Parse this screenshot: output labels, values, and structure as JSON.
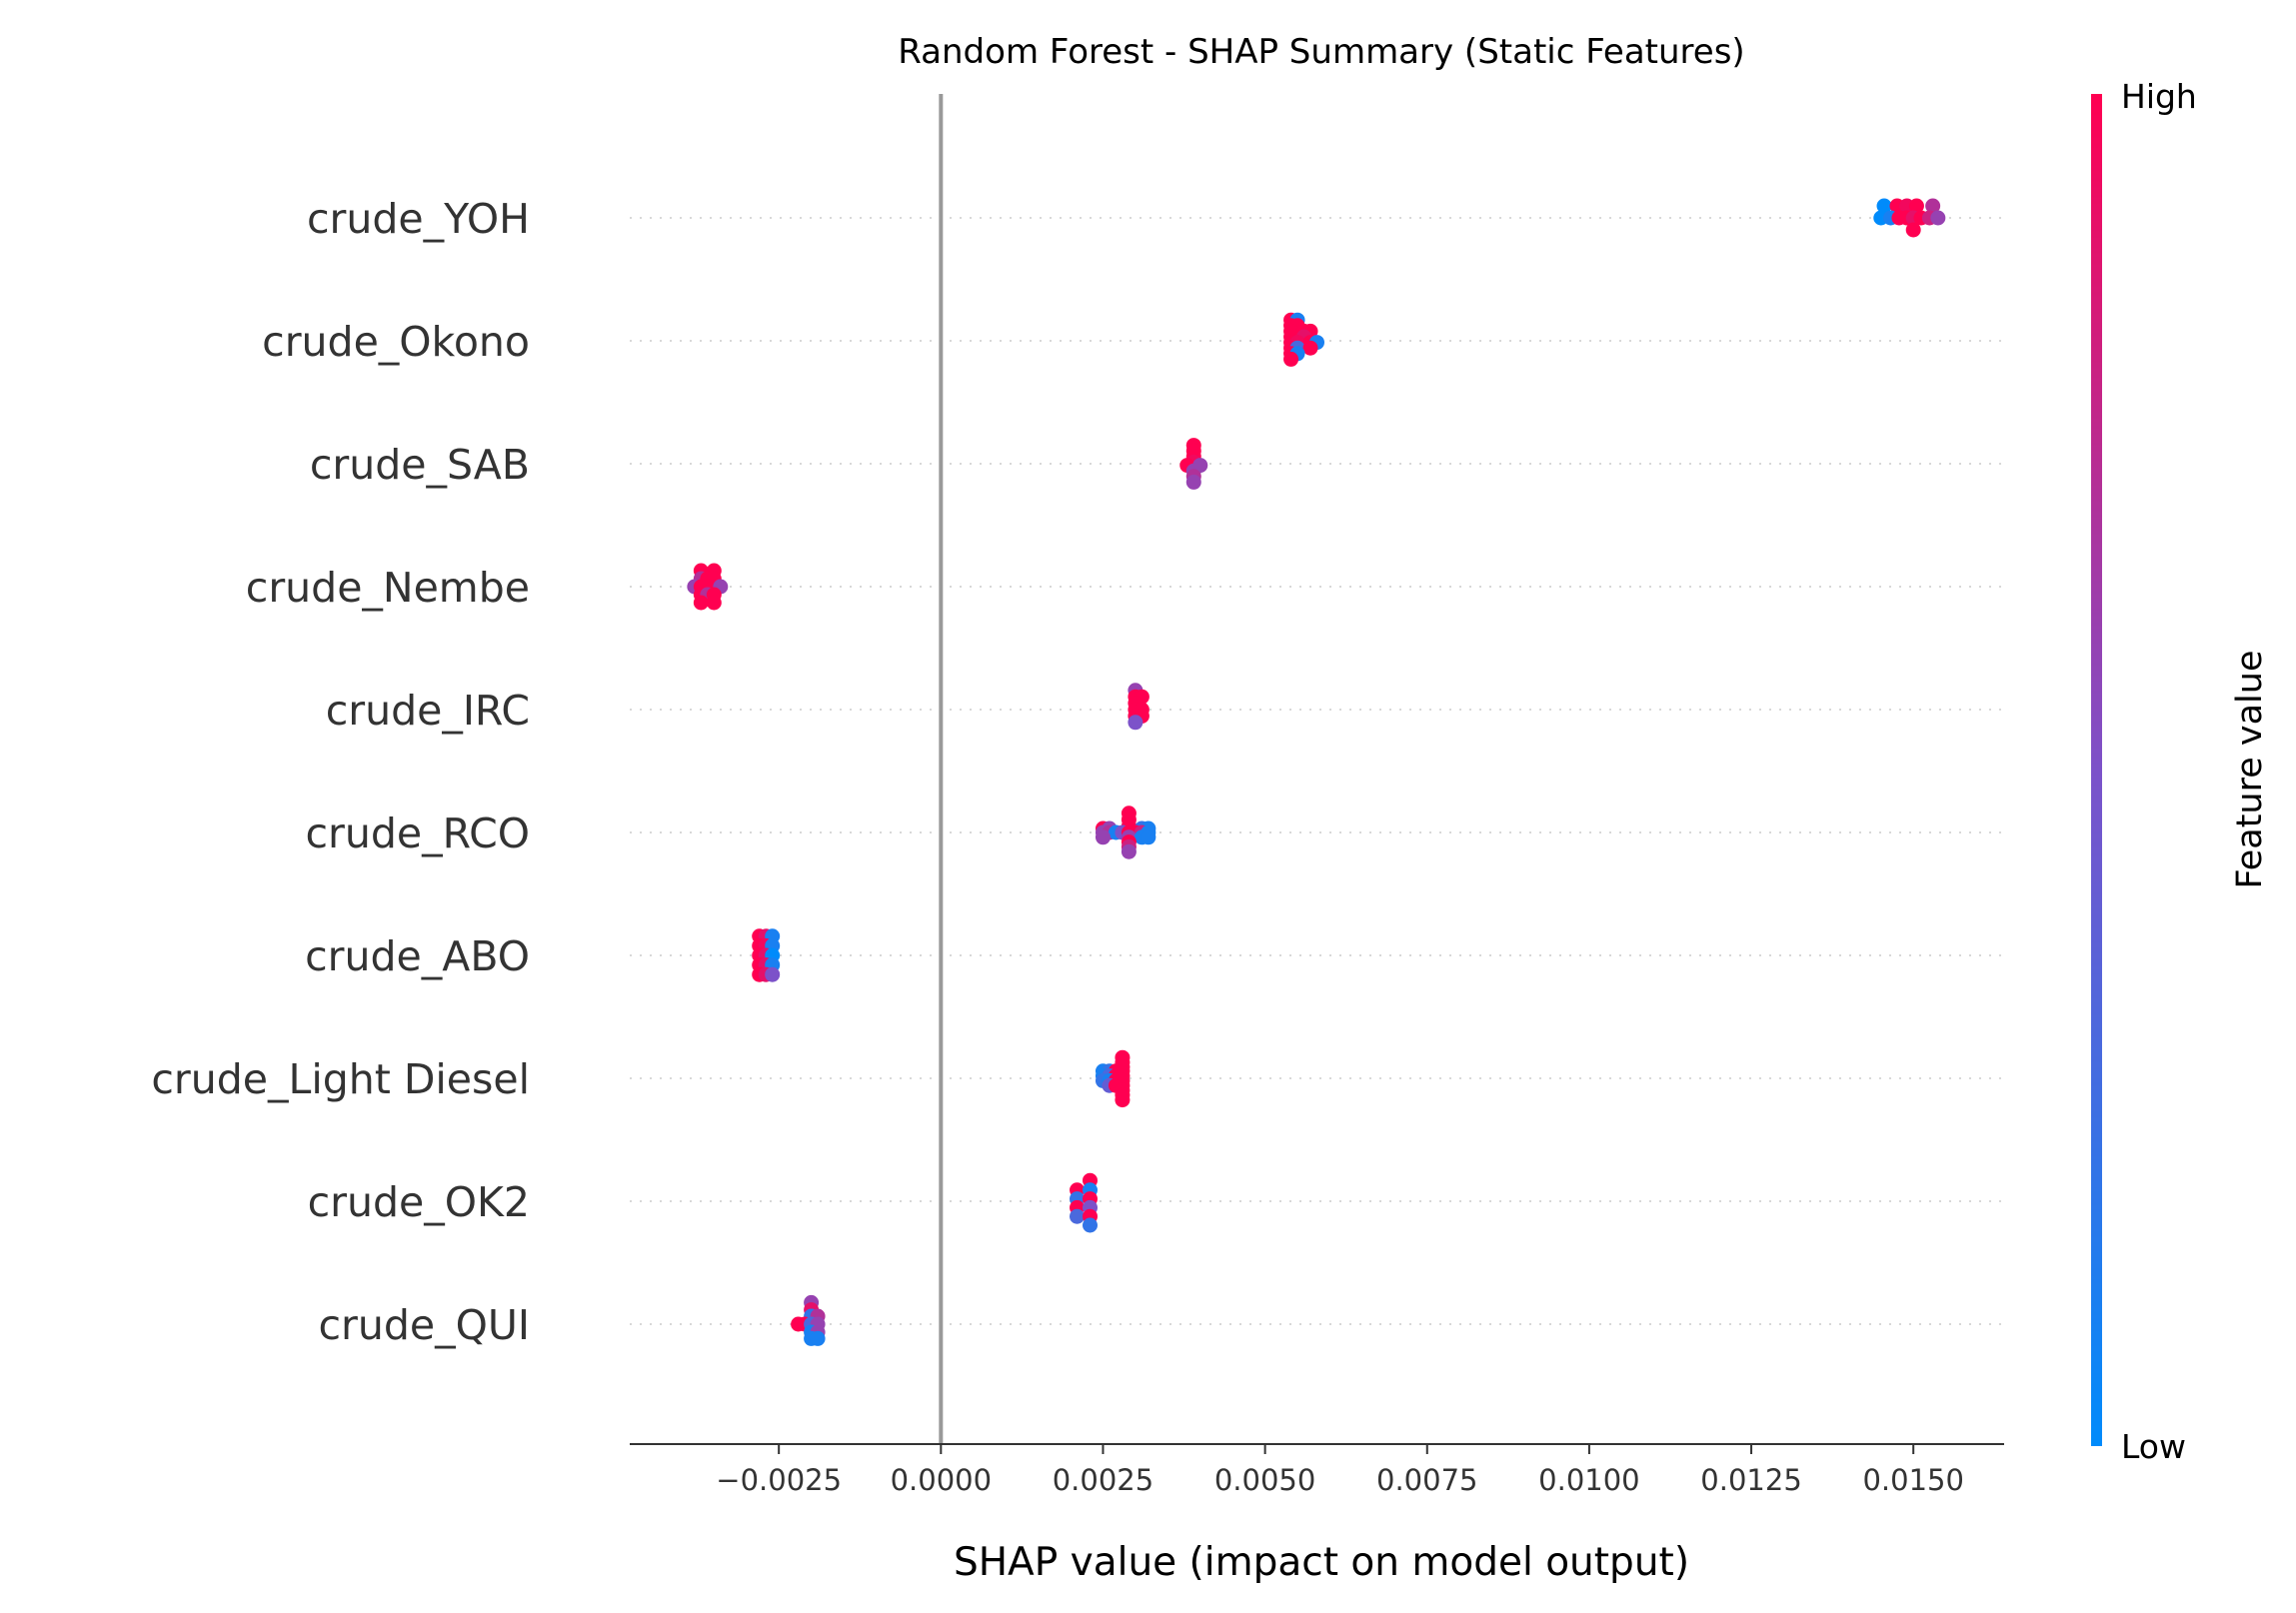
{
  "chart_data": {
    "type": "scatter",
    "subtype": "shap-beeswarm",
    "title": "Random Forest - SHAP Summary (Static Features)",
    "xlabel": "SHAP value (impact on model output)",
    "ylabel": "",
    "xlim": [
      -0.0048,
      0.0164
    ],
    "x_ticks": [
      -0.0025,
      0.0,
      0.0025,
      0.005,
      0.0075,
      0.01,
      0.0125,
      0.015
    ],
    "x_tick_labels": [
      "−0.0025",
      "0.0000",
      "0.0025",
      "0.0050",
      "0.0075",
      "0.0100",
      "0.0125",
      "0.0150"
    ],
    "grid": false,
    "zero_line": true,
    "colorbar": {
      "title": "Feature value",
      "high_label": "High",
      "low_label": "Low",
      "low_color": "#008bfb",
      "mid_color": "#7c52c9",
      "high_color": "#ff0051"
    },
    "features": [
      {
        "name": "crude_YOH",
        "points": [
          {
            "x": 0.01455,
            "y": 0.75,
            "c": 0.0
          },
          {
            "x": 0.01475,
            "y": 0.75,
            "c": 1.0
          },
          {
            "x": 0.0149,
            "y": 0.75,
            "c": 0.95
          },
          {
            "x": 0.01505,
            "y": 0.75,
            "c": 1.0
          },
          {
            "x": 0.0153,
            "y": 0.75,
            "c": 0.7
          },
          {
            "x": 0.0145,
            "y": 0.0,
            "c": 0.0
          },
          {
            "x": 0.01465,
            "y": 0.0,
            "c": 0.1
          },
          {
            "x": 0.01478,
            "y": 0.0,
            "c": 1.0
          },
          {
            "x": 0.0149,
            "y": 0.0,
            "c": 1.0
          },
          {
            "x": 0.015,
            "y": 0.0,
            "c": 0.9
          },
          {
            "x": 0.01512,
            "y": 0.0,
            "c": 1.0
          },
          {
            "x": 0.01525,
            "y": 0.0,
            "c": 0.8
          },
          {
            "x": 0.01538,
            "y": 0.0,
            "c": 0.6
          },
          {
            "x": 0.015,
            "y": -0.75,
            "c": 1.0
          }
        ]
      },
      {
        "name": "crude_Okono",
        "points": [
          {
            "x": 0.0054,
            "y": 1.3,
            "c": 1.0
          },
          {
            "x": 0.0055,
            "y": 1.3,
            "c": 0.1
          },
          {
            "x": 0.0054,
            "y": 0.95,
            "c": 1.0
          },
          {
            "x": 0.0055,
            "y": 0.95,
            "c": 1.0
          },
          {
            "x": 0.0054,
            "y": 0.6,
            "c": 1.0
          },
          {
            "x": 0.0056,
            "y": 0.6,
            "c": 1.0
          },
          {
            "x": 0.0057,
            "y": 0.6,
            "c": 1.0
          },
          {
            "x": 0.0054,
            "y": 0.25,
            "c": 1.0
          },
          {
            "x": 0.0055,
            "y": 0.25,
            "c": 1.0
          },
          {
            "x": 0.0056,
            "y": 0.25,
            "c": 0.9
          },
          {
            "x": 0.0054,
            "y": -0.1,
            "c": 1.0
          },
          {
            "x": 0.0055,
            "y": -0.1,
            "c": 0.95
          },
          {
            "x": 0.0057,
            "y": -0.1,
            "c": 1.0
          },
          {
            "x": 0.0058,
            "y": -0.1,
            "c": 0.1
          },
          {
            "x": 0.0054,
            "y": -0.45,
            "c": 1.0
          },
          {
            "x": 0.0055,
            "y": -0.45,
            "c": 0.3
          },
          {
            "x": 0.0057,
            "y": -0.45,
            "c": 1.0
          },
          {
            "x": 0.0054,
            "y": -0.8,
            "c": 1.0
          },
          {
            "x": 0.0055,
            "y": -0.8,
            "c": 0.1
          },
          {
            "x": 0.0054,
            "y": -1.15,
            "c": 1.0
          }
        ]
      },
      {
        "name": "crude_SAB",
        "points": [
          {
            "x": 0.0039,
            "y": 1.15,
            "c": 1.0
          },
          {
            "x": 0.0039,
            "y": 0.8,
            "c": 1.0
          },
          {
            "x": 0.0039,
            "y": 0.45,
            "c": 1.0
          },
          {
            "x": 0.0039,
            "y": 0.1,
            "c": 0.95
          },
          {
            "x": 0.0038,
            "y": -0.1,
            "c": 1.0
          },
          {
            "x": 0.004,
            "y": -0.1,
            "c": 0.6
          },
          {
            "x": 0.0039,
            "y": -0.45,
            "c": 0.6
          },
          {
            "x": 0.0039,
            "y": -0.8,
            "c": 0.7
          },
          {
            "x": 0.0039,
            "y": -1.15,
            "c": 0.6
          }
        ]
      },
      {
        "name": "crude_Nembe",
        "points": [
          {
            "x": -0.0037,
            "y": 1.0,
            "c": 1.0
          },
          {
            "x": -0.0035,
            "y": 1.0,
            "c": 1.0
          },
          {
            "x": -0.0037,
            "y": 0.5,
            "c": 0.7
          },
          {
            "x": -0.0036,
            "y": 0.5,
            "c": 1.0
          },
          {
            "x": -0.0035,
            "y": 0.5,
            "c": 1.0
          },
          {
            "x": -0.0038,
            "y": 0.0,
            "c": 0.6
          },
          {
            "x": -0.0037,
            "y": 0.0,
            "c": 1.0
          },
          {
            "x": -0.0036,
            "y": 0.0,
            "c": 1.0
          },
          {
            "x": -0.0035,
            "y": 0.0,
            "c": 1.0
          },
          {
            "x": -0.0034,
            "y": 0.0,
            "c": 0.6
          },
          {
            "x": -0.0037,
            "y": -0.5,
            "c": 1.0
          },
          {
            "x": -0.0036,
            "y": -0.5,
            "c": 0.7
          },
          {
            "x": -0.0035,
            "y": -0.5,
            "c": 1.0
          },
          {
            "x": -0.0037,
            "y": -1.0,
            "c": 1.0
          },
          {
            "x": -0.0035,
            "y": -1.0,
            "c": 1.0
          }
        ]
      },
      {
        "name": "crude_IRC",
        "points": [
          {
            "x": 0.003,
            "y": 1.2,
            "c": 0.6
          },
          {
            "x": 0.003,
            "y": 0.8,
            "c": 1.0
          },
          {
            "x": 0.0031,
            "y": 0.8,
            "c": 1.0
          },
          {
            "x": 0.003,
            "y": 0.4,
            "c": 1.0
          },
          {
            "x": 0.003,
            "y": 0.0,
            "c": 1.0
          },
          {
            "x": 0.0031,
            "y": 0.0,
            "c": 1.0
          },
          {
            "x": 0.003,
            "y": -0.4,
            "c": 1.0
          },
          {
            "x": 0.0031,
            "y": -0.4,
            "c": 1.0
          },
          {
            "x": 0.003,
            "y": -0.8,
            "c": 0.5
          }
        ]
      },
      {
        "name": "crude_RCO",
        "points": [
          {
            "x": 0.0029,
            "y": 1.2,
            "c": 1.0
          },
          {
            "x": 0.0029,
            "y": 0.8,
            "c": 1.0
          },
          {
            "x": 0.0029,
            "y": 0.4,
            "c": 1.0
          },
          {
            "x": 0.0025,
            "y": 0.25,
            "c": 1.0
          },
          {
            "x": 0.0026,
            "y": 0.25,
            "c": 0.6
          },
          {
            "x": 0.0031,
            "y": 0.25,
            "c": 0.2
          },
          {
            "x": 0.0032,
            "y": 0.25,
            "c": 0.1
          },
          {
            "x": 0.0025,
            "y": 0.0,
            "c": 0.6
          },
          {
            "x": 0.0026,
            "y": 0.0,
            "c": 0.7
          },
          {
            "x": 0.0027,
            "y": 0.0,
            "c": 0.1
          },
          {
            "x": 0.0028,
            "y": 0.0,
            "c": 0.5
          },
          {
            "x": 0.0029,
            "y": 0.0,
            "c": 1.0
          },
          {
            "x": 0.003,
            "y": 0.0,
            "c": 1.0
          },
          {
            "x": 0.0031,
            "y": 0.0,
            "c": 0.8
          },
          {
            "x": 0.0032,
            "y": 0.0,
            "c": 0.1
          },
          {
            "x": 0.0025,
            "y": -0.3,
            "c": 0.6
          },
          {
            "x": 0.0029,
            "y": -0.3,
            "c": 0.6
          },
          {
            "x": 0.0031,
            "y": -0.3,
            "c": 0.1
          },
          {
            "x": 0.0032,
            "y": -0.3,
            "c": 0.1
          },
          {
            "x": 0.0029,
            "y": -0.6,
            "c": 1.0
          },
          {
            "x": 0.0029,
            "y": -0.9,
            "c": 0.8
          },
          {
            "x": 0.0029,
            "y": -1.2,
            "c": 0.6
          }
        ]
      },
      {
        "name": "crude_ABO",
        "points": [
          {
            "x": -0.0028,
            "y": 1.2,
            "c": 1.0
          },
          {
            "x": -0.0027,
            "y": 1.2,
            "c": 0.9
          },
          {
            "x": -0.0026,
            "y": 1.2,
            "c": 0.1
          },
          {
            "x": -0.0028,
            "y": 0.6,
            "c": 1.0
          },
          {
            "x": -0.0027,
            "y": 0.6,
            "c": 0.95
          },
          {
            "x": -0.0026,
            "y": 0.6,
            "c": 0.1
          },
          {
            "x": -0.0028,
            "y": 0.0,
            "c": 1.0
          },
          {
            "x": -0.0027,
            "y": 0.0,
            "c": 0.9
          },
          {
            "x": -0.0026,
            "y": 0.0,
            "c": 0.0
          },
          {
            "x": -0.0028,
            "y": -0.6,
            "c": 1.0
          },
          {
            "x": -0.0027,
            "y": -0.6,
            "c": 0.9
          },
          {
            "x": -0.0026,
            "y": -0.6,
            "c": 0.1
          },
          {
            "x": -0.0028,
            "y": -1.2,
            "c": 1.0
          },
          {
            "x": -0.0027,
            "y": -1.2,
            "c": 0.9
          },
          {
            "x": -0.0026,
            "y": -1.2,
            "c": 0.5
          }
        ]
      },
      {
        "name": "crude_Light Diesel",
        "points": [
          {
            "x": 0.0028,
            "y": 1.3,
            "c": 1.0
          },
          {
            "x": 0.0028,
            "y": 1.0,
            "c": 1.0
          },
          {
            "x": 0.0028,
            "y": 0.7,
            "c": 1.0
          },
          {
            "x": 0.0025,
            "y": 0.45,
            "c": 0.1
          },
          {
            "x": 0.0026,
            "y": 0.45,
            "c": 0.2
          },
          {
            "x": 0.0027,
            "y": 0.45,
            "c": 1.0
          },
          {
            "x": 0.0028,
            "y": 0.45,
            "c": 1.0
          },
          {
            "x": 0.0025,
            "y": 0.15,
            "c": 0.1
          },
          {
            "x": 0.0026,
            "y": 0.15,
            "c": 0.3
          },
          {
            "x": 0.0027,
            "y": 0.15,
            "c": 1.0
          },
          {
            "x": 0.0028,
            "y": 0.15,
            "c": 1.0
          },
          {
            "x": 0.0025,
            "y": -0.15,
            "c": 0.2
          },
          {
            "x": 0.0026,
            "y": -0.15,
            "c": 0.1
          },
          {
            "x": 0.0027,
            "y": -0.15,
            "c": 1.0
          },
          {
            "x": 0.0028,
            "y": -0.15,
            "c": 1.0
          },
          {
            "x": 0.0026,
            "y": -0.45,
            "c": 0.4
          },
          {
            "x": 0.0027,
            "y": -0.45,
            "c": 1.0
          },
          {
            "x": 0.0028,
            "y": -0.45,
            "c": 1.0
          },
          {
            "x": 0.0028,
            "y": -0.75,
            "c": 1.0
          },
          {
            "x": 0.0028,
            "y": -1.05,
            "c": 1.0
          },
          {
            "x": 0.0028,
            "y": -1.35,
            "c": 1.0
          }
        ]
      },
      {
        "name": "crude_OK2",
        "points": [
          {
            "x": 0.0023,
            "y": 1.3,
            "c": 1.0
          },
          {
            "x": 0.0021,
            "y": 0.7,
            "c": 1.0
          },
          {
            "x": 0.0023,
            "y": 0.7,
            "c": 0.1
          },
          {
            "x": 0.0021,
            "y": 0.15,
            "c": 0.2
          },
          {
            "x": 0.0023,
            "y": 0.15,
            "c": 1.0
          },
          {
            "x": 0.0021,
            "y": -0.4,
            "c": 1.0
          },
          {
            "x": 0.0023,
            "y": -0.4,
            "c": 0.5
          },
          {
            "x": 0.0021,
            "y": -0.95,
            "c": 0.3
          },
          {
            "x": 0.0023,
            "y": -0.95,
            "c": 1.0
          },
          {
            "x": 0.0023,
            "y": -1.5,
            "c": 0.2
          }
        ]
      },
      {
        "name": "crude_QUI",
        "points": [
          {
            "x": -0.002,
            "y": 1.35,
            "c": 0.6
          },
          {
            "x": -0.002,
            "y": 0.9,
            "c": 0.9
          },
          {
            "x": -0.002,
            "y": 0.5,
            "c": 0.2
          },
          {
            "x": -0.0019,
            "y": 0.5,
            "c": 0.7
          },
          {
            "x": -0.0022,
            "y": 0.0,
            "c": 1.0
          },
          {
            "x": -0.0021,
            "y": 0.0,
            "c": 1.0
          },
          {
            "x": -0.002,
            "y": 0.0,
            "c": 0.3
          },
          {
            "x": -0.0019,
            "y": 0.0,
            "c": 0.6
          },
          {
            "x": -0.002,
            "y": -0.5,
            "c": 0.1
          },
          {
            "x": -0.0019,
            "y": -0.5,
            "c": 0.6
          },
          {
            "x": -0.002,
            "y": -0.9,
            "c": 0.1
          },
          {
            "x": -0.0019,
            "y": -0.9,
            "c": 0.1
          }
        ]
      }
    ]
  }
}
